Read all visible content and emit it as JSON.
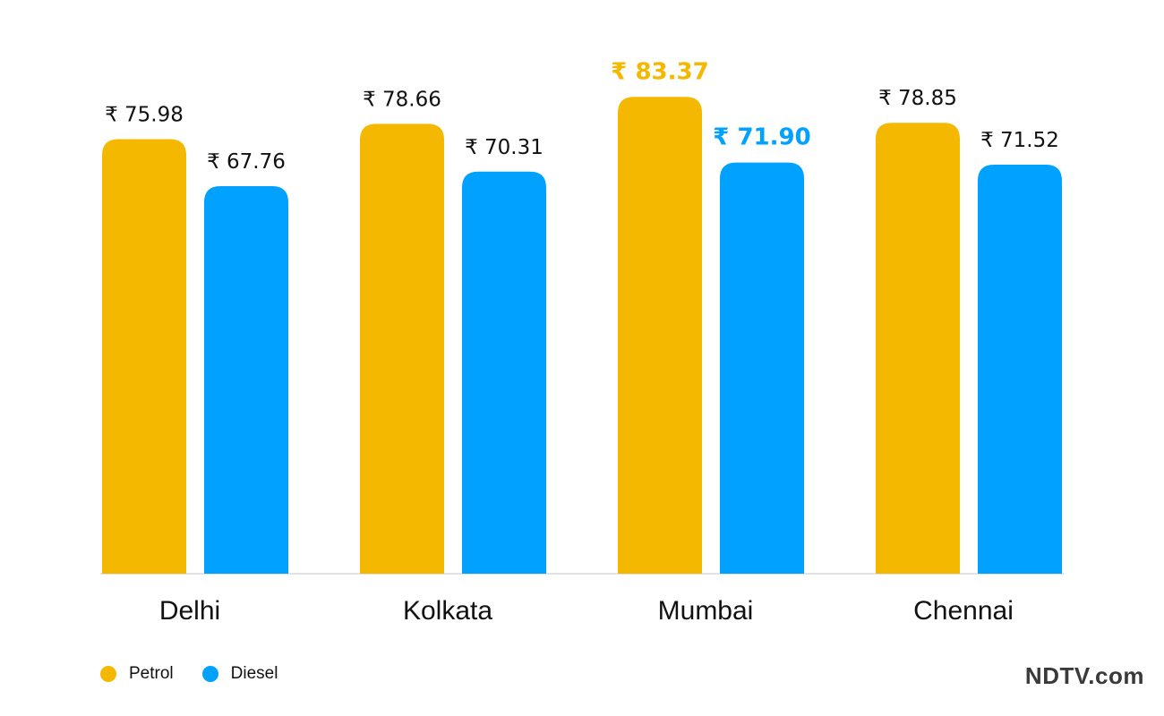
{
  "chart_data": {
    "type": "bar",
    "categories": [
      "Delhi",
      "Kolkata",
      "Mumbai",
      "Chennai"
    ],
    "series": [
      {
        "name": "Petrol",
        "color": "#F5B800",
        "values": [
          75.98,
          78.66,
          83.37,
          78.85
        ],
        "labels": [
          "₹ 75.98",
          "₹ 78.66",
          "₹ 83.37",
          "₹ 78.85"
        ]
      },
      {
        "name": "Diesel",
        "color": "#00A1FF",
        "values": [
          67.76,
          70.31,
          71.9,
          71.52
        ],
        "labels": [
          "₹ 67.76",
          "₹ 70.31",
          "₹ 71.90",
          "₹ 71.52"
        ]
      }
    ],
    "highlight_category": "Mumbai",
    "ylim": [
      0,
      95
    ],
    "grid": false,
    "legend_position": "bottom-left"
  },
  "legend": {
    "petrol_label": "Petrol",
    "diesel_label": "Diesel"
  },
  "brand": {
    "logo_text": "NDTV.com"
  }
}
